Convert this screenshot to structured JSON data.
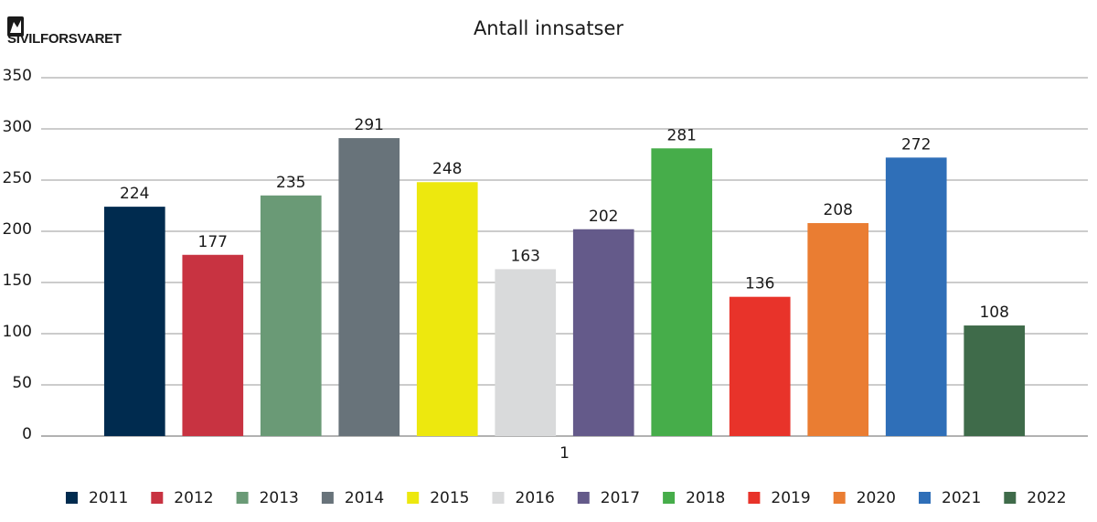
{
  "logo_text": "SIVILFORSVARET",
  "chart_data": {
    "type": "bar",
    "title": "Antall innsatser",
    "categories": [
      "1"
    ],
    "series": [
      {
        "name": "2011",
        "color": "#002b4f",
        "values": [
          224
        ]
      },
      {
        "name": "2012",
        "color": "#c83341",
        "values": [
          177
        ]
      },
      {
        "name": "2013",
        "color": "#6a9a76",
        "values": [
          235
        ]
      },
      {
        "name": "2014",
        "color": "#68737a",
        "values": [
          291
        ]
      },
      {
        "name": "2015",
        "color": "#ede80e",
        "values": [
          248
        ]
      },
      {
        "name": "2016",
        "color": "#d9dadb",
        "values": [
          163
        ]
      },
      {
        "name": "2017",
        "color": "#645a8a",
        "values": [
          202
        ]
      },
      {
        "name": "2018",
        "color": "#46ad4a",
        "values": [
          281
        ]
      },
      {
        "name": "2019",
        "color": "#e8332a",
        "values": [
          136
        ]
      },
      {
        "name": "2020",
        "color": "#ea7d32",
        "values": [
          208
        ]
      },
      {
        "name": "2021",
        "color": "#2f6fb8",
        "values": [
          272
        ]
      },
      {
        "name": "2022",
        "color": "#3f6b4a",
        "values": [
          108
        ]
      }
    ],
    "ylim": [
      0,
      350
    ],
    "yticks": [
      0,
      50,
      100,
      150,
      200,
      250,
      300,
      350
    ],
    "grid": true,
    "legend": "bottom",
    "data_labels": true
  }
}
